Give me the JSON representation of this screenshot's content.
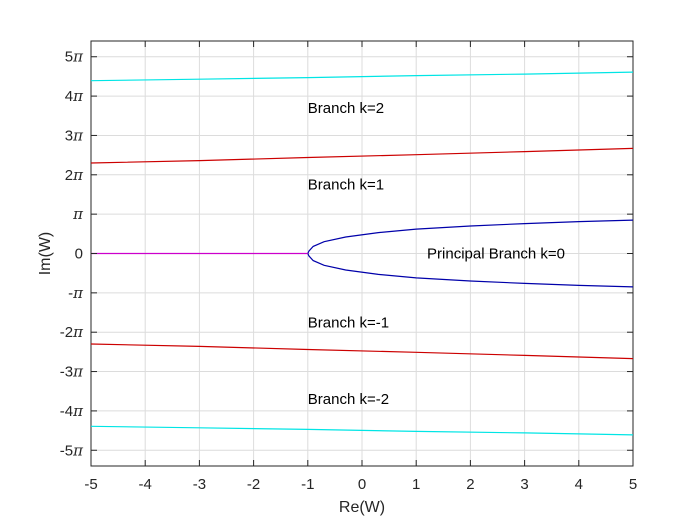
{
  "chart_data": {
    "type": "line",
    "xlabel": "Re(W)",
    "ylabel": "Im(W)",
    "xlim": [
      -5,
      5
    ],
    "ylim": [
      -5.4,
      5.4
    ],
    "y_unit": "π",
    "x_ticks": [
      "-5",
      "-4",
      "-3",
      "-2",
      "-1",
      "0",
      "1",
      "2",
      "3",
      "4",
      "5"
    ],
    "y_ticks": [
      {
        "value": 5,
        "text": "5π"
      },
      {
        "value": 4,
        "text": "4π"
      },
      {
        "value": 3,
        "text": "3π"
      },
      {
        "value": 2,
        "text": "2π"
      },
      {
        "value": 1,
        "text": "π"
      },
      {
        "value": 0,
        "text": "0"
      },
      {
        "value": -1,
        "text": "-π"
      },
      {
        "value": -2,
        "text": "-2π"
      },
      {
        "value": -3,
        "text": "-3π"
      },
      {
        "value": -4,
        "text": "-4π"
      },
      {
        "value": -5,
        "text": "-5π"
      }
    ],
    "grid": true,
    "series": [
      {
        "color": "#00e5e5",
        "points": [
          [
            -5,
            4.39
          ],
          [
            -3,
            4.43
          ],
          [
            -1,
            4.47
          ],
          [
            1,
            4.52
          ],
          [
            3,
            4.56
          ],
          [
            5,
            4.61
          ]
        ]
      },
      {
        "color": "#cc0000",
        "points": [
          [
            -5,
            2.3
          ],
          [
            -3,
            2.36
          ],
          [
            -1,
            2.44
          ],
          [
            1,
            2.51
          ],
          [
            3,
            2.59
          ],
          [
            5,
            2.67
          ]
        ]
      },
      {
        "color": "#cc0000",
        "points": [
          [
            -5,
            -2.3
          ],
          [
            -3,
            -2.36
          ],
          [
            -1,
            -2.44
          ],
          [
            1,
            -2.51
          ],
          [
            3,
            -2.59
          ],
          [
            5,
            -2.67
          ]
        ]
      },
      {
        "color": "#00e5e5",
        "points": [
          [
            -5,
            -4.39
          ],
          [
            -3,
            -4.43
          ],
          [
            -1,
            -4.47
          ],
          [
            1,
            -4.52
          ],
          [
            3,
            -4.56
          ],
          [
            5,
            -4.61
          ]
        ]
      },
      {
        "color": "#0000aa",
        "points": [
          [
            5,
            0.85
          ],
          [
            4,
            0.81
          ],
          [
            3,
            0.76
          ],
          [
            2,
            0.7
          ],
          [
            1,
            0.62
          ],
          [
            0.3,
            0.53
          ],
          [
            -0.3,
            0.42
          ],
          [
            -0.7,
            0.3
          ],
          [
            -0.9,
            0.18
          ],
          [
            -0.98,
            0.06
          ],
          [
            -1,
            0
          ],
          [
            -0.98,
            -0.06
          ],
          [
            -0.9,
            -0.18
          ],
          [
            -0.7,
            -0.3
          ],
          [
            -0.3,
            -0.42
          ],
          [
            0.3,
            -0.53
          ],
          [
            1,
            -0.62
          ],
          [
            2,
            -0.7
          ],
          [
            3,
            -0.76
          ],
          [
            4,
            -0.81
          ],
          [
            5,
            -0.85
          ]
        ]
      },
      {
        "color": "#cc00cc",
        "points": [
          [
            -5,
            0
          ],
          [
            -1,
            0
          ]
        ]
      }
    ],
    "annotations": [
      {
        "text": "Branch k=2",
        "x": -1,
        "y": 3.7
      },
      {
        "text": "Branch k=1",
        "x": -1,
        "y": 1.75
      },
      {
        "text": "Principal Branch k=0",
        "x": 1.2,
        "y": 0
      },
      {
        "text": "Branch k=-1",
        "x": -1,
        "y": -1.75
      },
      {
        "text": "Branch k=-2",
        "x": -1,
        "y": -3.7
      }
    ]
  }
}
